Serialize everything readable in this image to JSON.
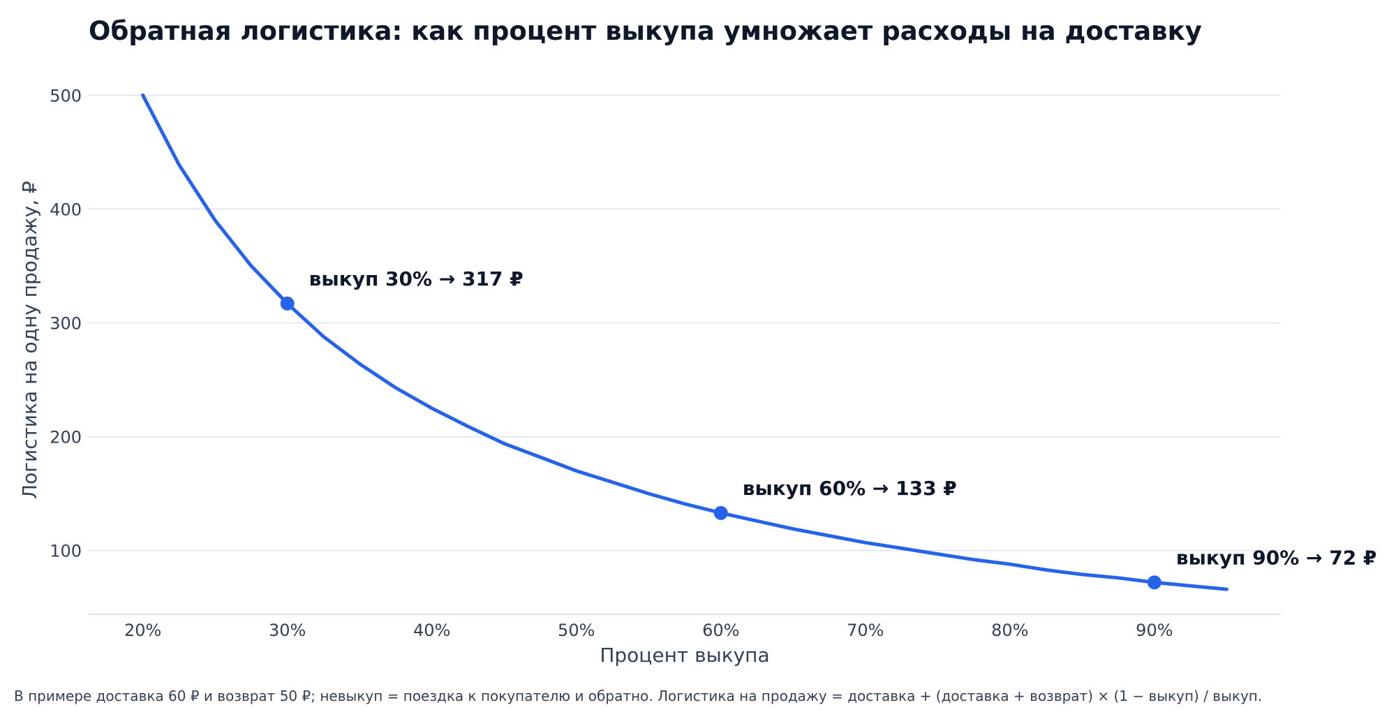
{
  "chart_data": {
    "type": "line",
    "title": "Обратная логистика: как процент выкупа умножает расходы на доставку",
    "xlabel": "Процент выкупа",
    "ylabel": "Логистика на одну продажу, ₽",
    "xlim": [
      16.25,
      98.75
    ],
    "ylim": [
      44,
      510
    ],
    "x_ticks": [
      {
        "value": 20,
        "label": "20%"
      },
      {
        "value": 30,
        "label": "30%"
      },
      {
        "value": 40,
        "label": "40%"
      },
      {
        "value": 50,
        "label": "50%"
      },
      {
        "value": 60,
        "label": "60%"
      },
      {
        "value": 70,
        "label": "70%"
      },
      {
        "value": 80,
        "label": "80%"
      },
      {
        "value": 90,
        "label": "90%"
      }
    ],
    "y_ticks": [
      {
        "value": 100,
        "label": "100"
      },
      {
        "value": 200,
        "label": "200"
      },
      {
        "value": 300,
        "label": "300"
      },
      {
        "value": 400,
        "label": "400"
      },
      {
        "value": 500,
        "label": "500"
      }
    ],
    "grid": "horizontal",
    "series": [
      {
        "color": "#2563eb",
        "x": [
          20,
          22.5,
          25,
          27.5,
          30,
          32.5,
          35,
          37.5,
          40,
          42.5,
          45,
          47.5,
          50,
          52.5,
          55,
          57.5,
          60,
          62.5,
          65,
          67.5,
          70,
          72.5,
          75,
          77.5,
          80,
          82.5,
          85,
          87.5,
          90,
          92.5,
          95
        ],
        "y": [
          500,
          439,
          390,
          350,
          317,
          288,
          264,
          243,
          225,
          209,
          194,
          182,
          170,
          160,
          150,
          141,
          133,
          126,
          119,
          113,
          107,
          102,
          97,
          92,
          88,
          83,
          79,
          76,
          72,
          69,
          66
        ]
      }
    ],
    "markers": [
      {
        "x": 30,
        "y": 317,
        "label": "выкуп 30% → 317 ₽"
      },
      {
        "x": 60,
        "y": 133,
        "label": "выкуп 60% → 133 ₽"
      },
      {
        "x": 90,
        "y": 72,
        "label": "выкуп 90% → 72 ₽"
      }
    ]
  },
  "footnote": "В примере доставка 60 ₽ и возврат 50 ₽; невыкуп = поездка к покупателю и обратно. Логистика на продажу = доставка + (доставка + возврат) × (1 − выкуп) / выкуп."
}
